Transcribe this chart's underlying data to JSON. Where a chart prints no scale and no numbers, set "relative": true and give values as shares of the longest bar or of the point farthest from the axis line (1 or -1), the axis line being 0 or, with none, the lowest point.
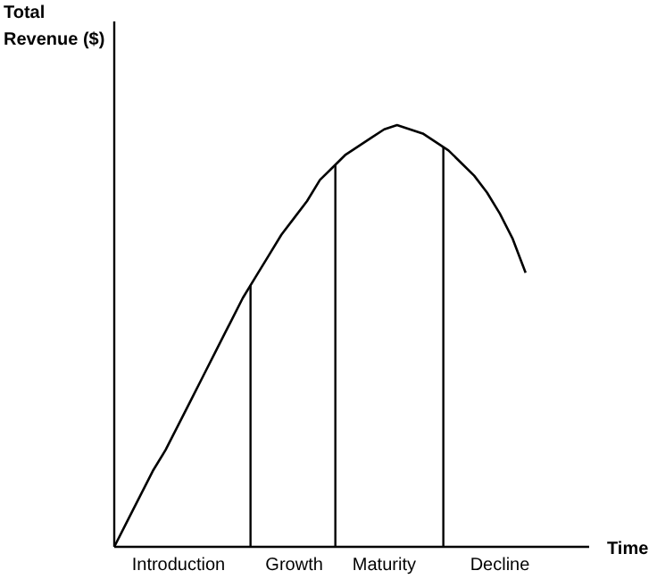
{
  "chart_data": {
    "type": "line",
    "relative": true,
    "ylabel": "Total\nRevenue ($)",
    "xlabel": "Time",
    "marker": "none",
    "line_style": "solid",
    "categories": [
      null,
      null,
      null,
      null,
      null,
      "Introduction",
      null,
      null,
      null,
      null,
      null,
      null,
      null,
      null,
      "Growth",
      null,
      null,
      null,
      null,
      null,
      null,
      "Maturity",
      null,
      null,
      null,
      null,
      null,
      null,
      null,
      null,
      "Decline",
      null,
      null
    ],
    "series": [
      {
        "color": "#000000",
        "values": [
          0,
          0.06,
          0.12,
          0.18,
          0.23,
          0.29,
          0.35,
          0.41,
          0.47,
          0.53,
          0.59,
          0.64,
          0.69,
          0.74,
          0.78,
          0.82,
          0.87,
          0.9,
          0.93,
          0.95,
          0.97,
          0.99,
          1,
          0.99,
          0.98,
          0.96,
          0.94,
          0.91,
          0.88,
          0.84,
          0.79,
          0.73,
          0.65
        ]
      }
    ]
  }
}
